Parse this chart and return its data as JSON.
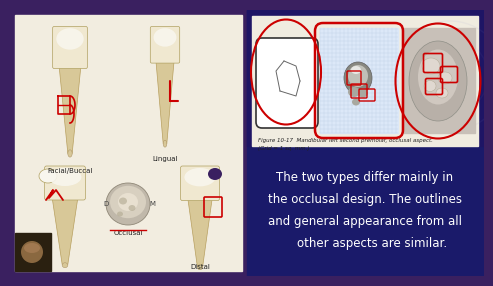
{
  "bg_left": "#3a2060",
  "bg_right": "#1a1a6a",
  "bg_top_right": "#2a1870",
  "panel_left_bg": "#f2ede0",
  "panel_right_bg": "#f0ece0",
  "text_main_line1": "The two types differ mainly in",
  "text_main_line2": "the occlusal design. The outlines",
  "text_main_line3": "and general appearance from all",
  "text_main_line4": "    other aspects are similar.",
  "text_color": "#ffffff",
  "fig_caption_line1": "Figure 10-17  Mandibular left second premolar, occlusal aspect.",
  "fig_caption_line2": "(Grid = 1 sq. mm.)",
  "label_facial": "Facial/Buccal",
  "label_lingual": "Lingual",
  "label_occlusal": "Occlusal",
  "label_distal": "Distal",
  "label_d": "D",
  "label_m": "M",
  "crown_color": "#f0e8d0",
  "crown_white": "#f8f6ee",
  "root_color": "#d8c898",
  "root_tip_color": "#c8b880",
  "red_annot": "#cc0000",
  "dark_line": "#333333",
  "grid_color": "#b8c8e0",
  "webcam_bg": "#2a2010"
}
